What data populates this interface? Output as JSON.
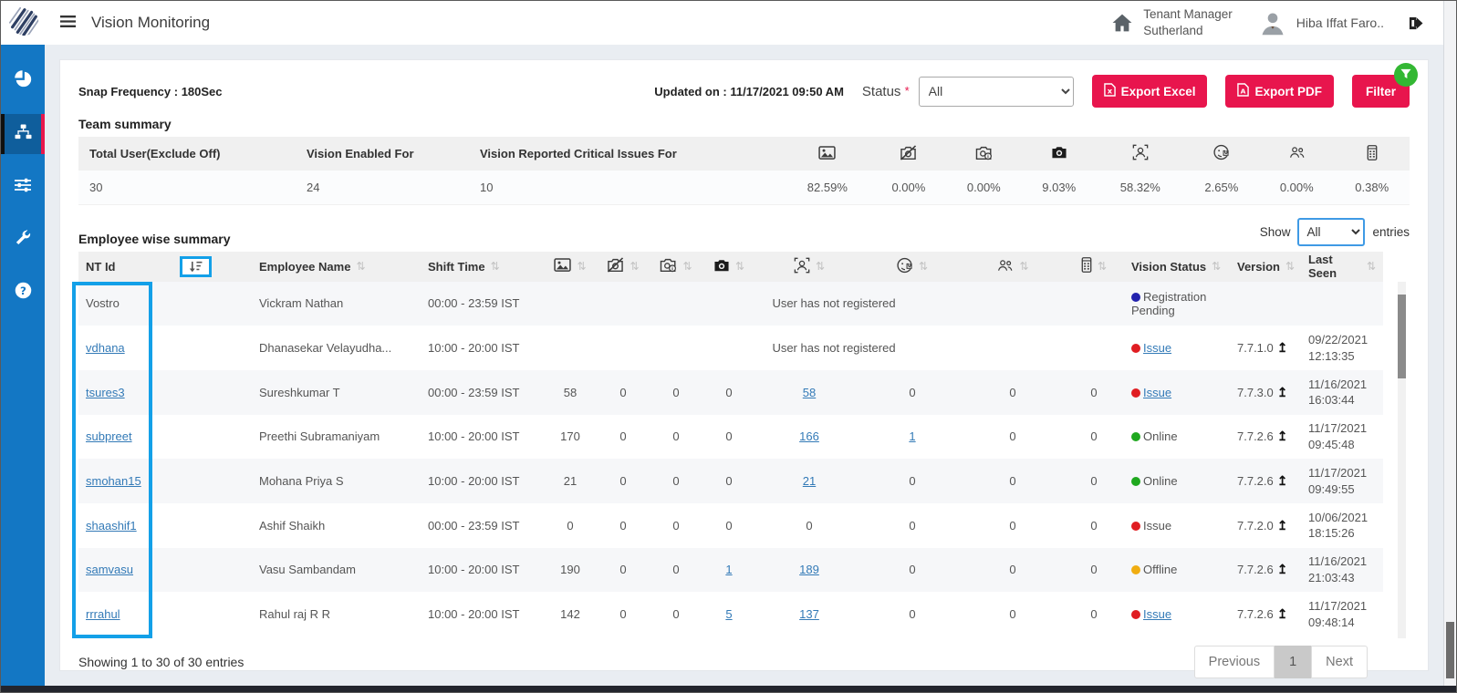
{
  "app": {
    "title": "Vision Monitoring"
  },
  "header": {
    "tenant_label": "Tenant Manager",
    "tenant_name": "Sutherland",
    "user_name": "Hiba Iffat Faro.."
  },
  "sidebar": {
    "items": [
      {
        "icon": "pie-chart-icon",
        "active": false
      },
      {
        "icon": "sitemap-icon",
        "active": true
      },
      {
        "icon": "sliders-icon",
        "active": false
      },
      {
        "icon": "wrench-icon",
        "active": false
      },
      {
        "icon": "help-icon",
        "active": false
      }
    ]
  },
  "toolbar": {
    "snap_frequency": "Snap Frequency : 180Sec",
    "updated_on": "Updated on : 11/17/2021 09:50 AM",
    "status_label": "Status",
    "status_required_mark": "*",
    "status_value": "All",
    "export_excel_label": "Export Excel",
    "export_pdf_label": "Export PDF",
    "filter_label": "Filter"
  },
  "colors": {
    "sidebar_blue": "#1377c4",
    "accent_crimson": "#e8154d",
    "annotation_blue": "#13a0e8",
    "badge_green": "#33b733",
    "link_blue": "#337ab7"
  },
  "team_summary": {
    "title": "Team summary",
    "text_headers": [
      "Total User(Exclude Off)",
      "Vision Enabled For",
      "Vision Reported Critical Issues For"
    ],
    "text_values": [
      "30",
      "24",
      "10"
    ],
    "icon_headers": [
      "snapshot-icon",
      "camera-disabled-icon",
      "camera-error-icon",
      "camera-capture-icon",
      "face-detection-icon",
      "face-mismatch-icon",
      "multiple-persons-icon",
      "mobile-detected-icon"
    ],
    "icon_values": [
      "82.59%",
      "0.00%",
      "0.00%",
      "9.03%",
      "58.32%",
      "2.65%",
      "0.00%",
      "0.38%"
    ]
  },
  "employee_summary": {
    "title": "Employee wise summary",
    "show_label": "Show",
    "show_value": "All",
    "entries_label": "entries",
    "not_registered_text": "User has not registered",
    "columns": [
      {
        "label": "NT Id",
        "active_sort": true
      },
      {
        "label": "Employee Name",
        "sort": true
      },
      {
        "label": "Shift Time",
        "sort": true
      },
      {
        "icon": "snapshot-icon",
        "sort": true
      },
      {
        "icon": "camera-disabled-icon",
        "sort": true
      },
      {
        "icon": "camera-error-icon",
        "sort": true
      },
      {
        "icon": "camera-capture-icon",
        "sort": true
      },
      {
        "icon": "face-detection-icon",
        "sort": true
      },
      {
        "icon": "face-mismatch-icon",
        "sort": true
      },
      {
        "icon": "multiple-persons-icon",
        "sort": true
      },
      {
        "icon": "mobile-detected-icon",
        "sort": true
      },
      {
        "label": "Vision Status",
        "sort": true
      },
      {
        "label": "Version",
        "sort": true
      },
      {
        "label": "Last Seen",
        "sort": true
      }
    ],
    "rows": [
      {
        "nt_id": "Vostro",
        "nt_link": false,
        "name": "Vickram Nathan",
        "shift": "00:00 - 23:59 IST",
        "not_registered": true,
        "status": {
          "dot": "#2323ae",
          "text": "Registration Pending",
          "link": false
        },
        "version": "",
        "last_seen_date": "",
        "last_seen_time": ""
      },
      {
        "nt_id": "vdhana",
        "nt_link": true,
        "name": "Dhanasekar Velayudha...",
        "shift": "10:00 - 20:00 IST",
        "not_registered": true,
        "status": {
          "dot": "#e01d22",
          "text": "Issue",
          "link": true
        },
        "version": "7.7.1.0",
        "last_seen_date": "09/22/2021",
        "last_seen_time": "12:13:35"
      },
      {
        "nt_id": "tsures3",
        "nt_link": true,
        "name": "Sureshkumar T",
        "shift": "00:00 - 23:59 IST",
        "values": [
          {
            "t": "58"
          },
          {
            "t": "0"
          },
          {
            "t": "0"
          },
          {
            "t": "0"
          },
          {
            "t": "58",
            "link": true
          },
          {
            "t": "0"
          },
          {
            "t": "0"
          },
          {
            "t": "0"
          }
        ],
        "status": {
          "dot": "#e01d22",
          "text": "Issue",
          "link": true
        },
        "version": "7.7.3.0",
        "last_seen_date": "11/16/2021",
        "last_seen_time": "16:03:44"
      },
      {
        "nt_id": "subpreet",
        "nt_link": true,
        "name": "Preethi Subramaniyam",
        "shift": "10:00 - 20:00 IST",
        "values": [
          {
            "t": "170"
          },
          {
            "t": "0"
          },
          {
            "t": "0"
          },
          {
            "t": "0"
          },
          {
            "t": "166",
            "link": true
          },
          {
            "t": "1",
            "link": true
          },
          {
            "t": "0"
          },
          {
            "t": "0"
          }
        ],
        "status": {
          "dot": "#1fa81f",
          "text": "Online",
          "link": false
        },
        "version": "7.7.2.6",
        "last_seen_date": "11/17/2021",
        "last_seen_time": "09:45:48"
      },
      {
        "nt_id": "smohan15",
        "nt_link": true,
        "name": "Mohana Priya S",
        "shift": "10:00 - 20:00 IST",
        "values": [
          {
            "t": "21"
          },
          {
            "t": "0"
          },
          {
            "t": "0"
          },
          {
            "t": "0"
          },
          {
            "t": "21",
            "link": true
          },
          {
            "t": "0"
          },
          {
            "t": "0"
          },
          {
            "t": "0"
          }
        ],
        "status": {
          "dot": "#1fa81f",
          "text": "Online",
          "link": false
        },
        "version": "7.7.2.6",
        "last_seen_date": "11/17/2021",
        "last_seen_time": "09:49:55"
      },
      {
        "nt_id": "shaashif1",
        "nt_link": true,
        "name": "Ashif Shaikh",
        "shift": "00:00 - 23:59 IST",
        "values": [
          {
            "t": "0"
          },
          {
            "t": "0"
          },
          {
            "t": "0"
          },
          {
            "t": "0"
          },
          {
            "t": "0"
          },
          {
            "t": "0"
          },
          {
            "t": "0"
          },
          {
            "t": "0"
          }
        ],
        "status": {
          "dot": "#e01d22",
          "text": "Issue",
          "link": false
        },
        "version": "7.7.2.0",
        "last_seen_date": "10/06/2021",
        "last_seen_time": "18:15:26"
      },
      {
        "nt_id": "samvasu",
        "nt_link": true,
        "name": "Vasu Sambandam",
        "shift": "10:00 - 20:00 IST",
        "values": [
          {
            "t": "190"
          },
          {
            "t": "0"
          },
          {
            "t": "0"
          },
          {
            "t": "1",
            "link": true
          },
          {
            "t": "189",
            "link": true
          },
          {
            "t": "0"
          },
          {
            "t": "0"
          },
          {
            "t": "0"
          }
        ],
        "status": {
          "dot": "#f0ad12",
          "text": "Offline",
          "link": false
        },
        "version": "7.7.2.6",
        "last_seen_date": "11/16/2021",
        "last_seen_time": "21:03:43"
      },
      {
        "nt_id": "rrrahul",
        "nt_link": true,
        "name": "Rahul raj R R",
        "shift": "10:00 - 20:00 IST",
        "values": [
          {
            "t": "142"
          },
          {
            "t": "0"
          },
          {
            "t": "0"
          },
          {
            "t": "5",
            "link": true
          },
          {
            "t": "137",
            "link": true
          },
          {
            "t": "0"
          },
          {
            "t": "0"
          },
          {
            "t": "0"
          }
        ],
        "status": {
          "dot": "#e01d22",
          "text": "Issue",
          "link": true
        },
        "version": "7.7.2.6",
        "last_seen_date": "11/17/2021",
        "last_seen_time": "09:48:14"
      }
    ],
    "footer": "Showing 1 to 30 of 30 entries",
    "pagination": {
      "previous": "Previous",
      "page": "1",
      "next": "Next"
    }
  }
}
